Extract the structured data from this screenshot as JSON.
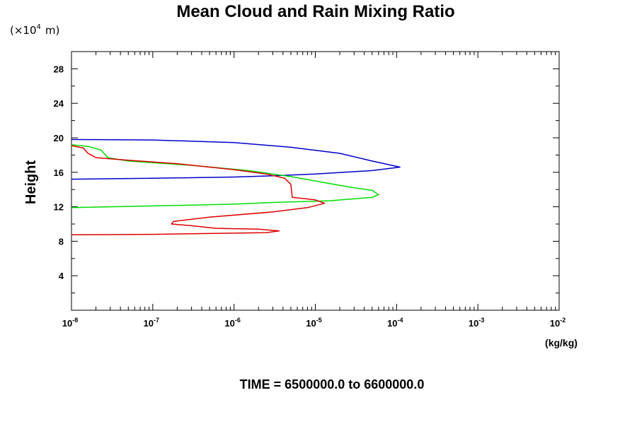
{
  "chart_data": {
    "type": "line",
    "title": "Mean Cloud and Rain Mixing Ratio",
    "y_unit": "(×10",
    "y_unit_exp": "4",
    "y_unit_m": "m)",
    "ylabel": "Height",
    "xlabel": "(kg/kg)",
    "footer": "TIME = 6500000.0 to 6600000.0",
    "xscale": "log",
    "xlim": [
      1e-08,
      0.01
    ],
    "ylim": [
      0,
      30
    ],
    "x_ticks": [
      {
        "base": "10",
        "exp": "-8",
        "value": 1e-08
      },
      {
        "base": "10",
        "exp": "-7",
        "value": 1e-07
      },
      {
        "base": "10",
        "exp": "-6",
        "value": 1e-06
      },
      {
        "base": "10",
        "exp": "-5",
        "value": 1e-05
      },
      {
        "base": "10",
        "exp": "-4",
        "value": 0.0001
      },
      {
        "base": "10",
        "exp": "-3",
        "value": 0.001
      },
      {
        "base": "10",
        "exp": "-2",
        "value": 0.01
      }
    ],
    "y_ticks": [
      "4",
      "8",
      "12",
      "16",
      "20",
      "24",
      "28"
    ],
    "grid": false,
    "series": [
      {
        "color": "#0000cc",
        "points": [
          [
            1e-08,
            19.8
          ],
          [
            1e-07,
            19.75
          ],
          [
            1e-06,
            19.45
          ],
          [
            5e-06,
            18.9
          ],
          [
            2e-05,
            18.2
          ],
          [
            5e-05,
            17.3
          ],
          [
            0.00011,
            16.6
          ],
          [
            5e-05,
            16.2
          ],
          [
            1e-05,
            15.8
          ],
          [
            3e-06,
            15.6
          ],
          [
            1e-06,
            15.45
          ],
          [
            1e-07,
            15.3
          ],
          [
            1e-08,
            15.2
          ]
        ]
      },
      {
        "color": "#00dd00",
        "points": [
          [
            1e-08,
            19.2
          ],
          [
            1.6e-08,
            19.0
          ],
          [
            2.3e-08,
            18.6
          ],
          [
            2.8e-08,
            17.7
          ],
          [
            5e-08,
            17.3
          ],
          [
            3e-07,
            16.8
          ],
          [
            1.5e-06,
            16.2
          ],
          [
            5e-06,
            15.5
          ],
          [
            1.5e-05,
            14.7
          ],
          [
            3e-05,
            14.2
          ],
          [
            5e-05,
            13.9
          ],
          [
            6e-05,
            13.4
          ],
          [
            5e-05,
            13.1
          ],
          [
            1.5e-05,
            12.7
          ],
          [
            3e-06,
            12.5
          ],
          [
            1e-06,
            12.3
          ],
          [
            1e-07,
            12.1
          ],
          [
            1e-08,
            11.9
          ]
        ]
      },
      {
        "color": "#dd0000",
        "points": [
          [
            1e-08,
            19.1
          ],
          [
            1.4e-08,
            18.8
          ],
          [
            1.6e-08,
            18.2
          ],
          [
            2e-08,
            17.7
          ],
          [
            5e-08,
            17.4
          ],
          [
            2e-07,
            17.0
          ],
          [
            1e-06,
            16.3
          ],
          [
            2.5e-06,
            15.8
          ],
          [
            4.2e-06,
            15.3
          ],
          [
            5e-06,
            14.6
          ],
          [
            5.2e-06,
            13.1
          ],
          [
            1e-05,
            12.8
          ],
          [
            1.3e-05,
            12.4
          ],
          [
            8e-06,
            11.9
          ],
          [
            3e-06,
            11.4
          ],
          [
            5e-07,
            10.8
          ],
          [
            1.8e-07,
            10.3
          ],
          [
            1.7e-07,
            10.0
          ],
          [
            3e-07,
            9.8
          ],
          [
            6e-07,
            9.5
          ],
          [
            2e-06,
            9.4
          ],
          [
            3.6e-06,
            9.2
          ],
          [
            2.5e-06,
            9.0
          ],
          [
            5e-07,
            8.9
          ],
          [
            1e-07,
            8.8
          ],
          [
            1e-08,
            8.75
          ]
        ]
      }
    ]
  }
}
